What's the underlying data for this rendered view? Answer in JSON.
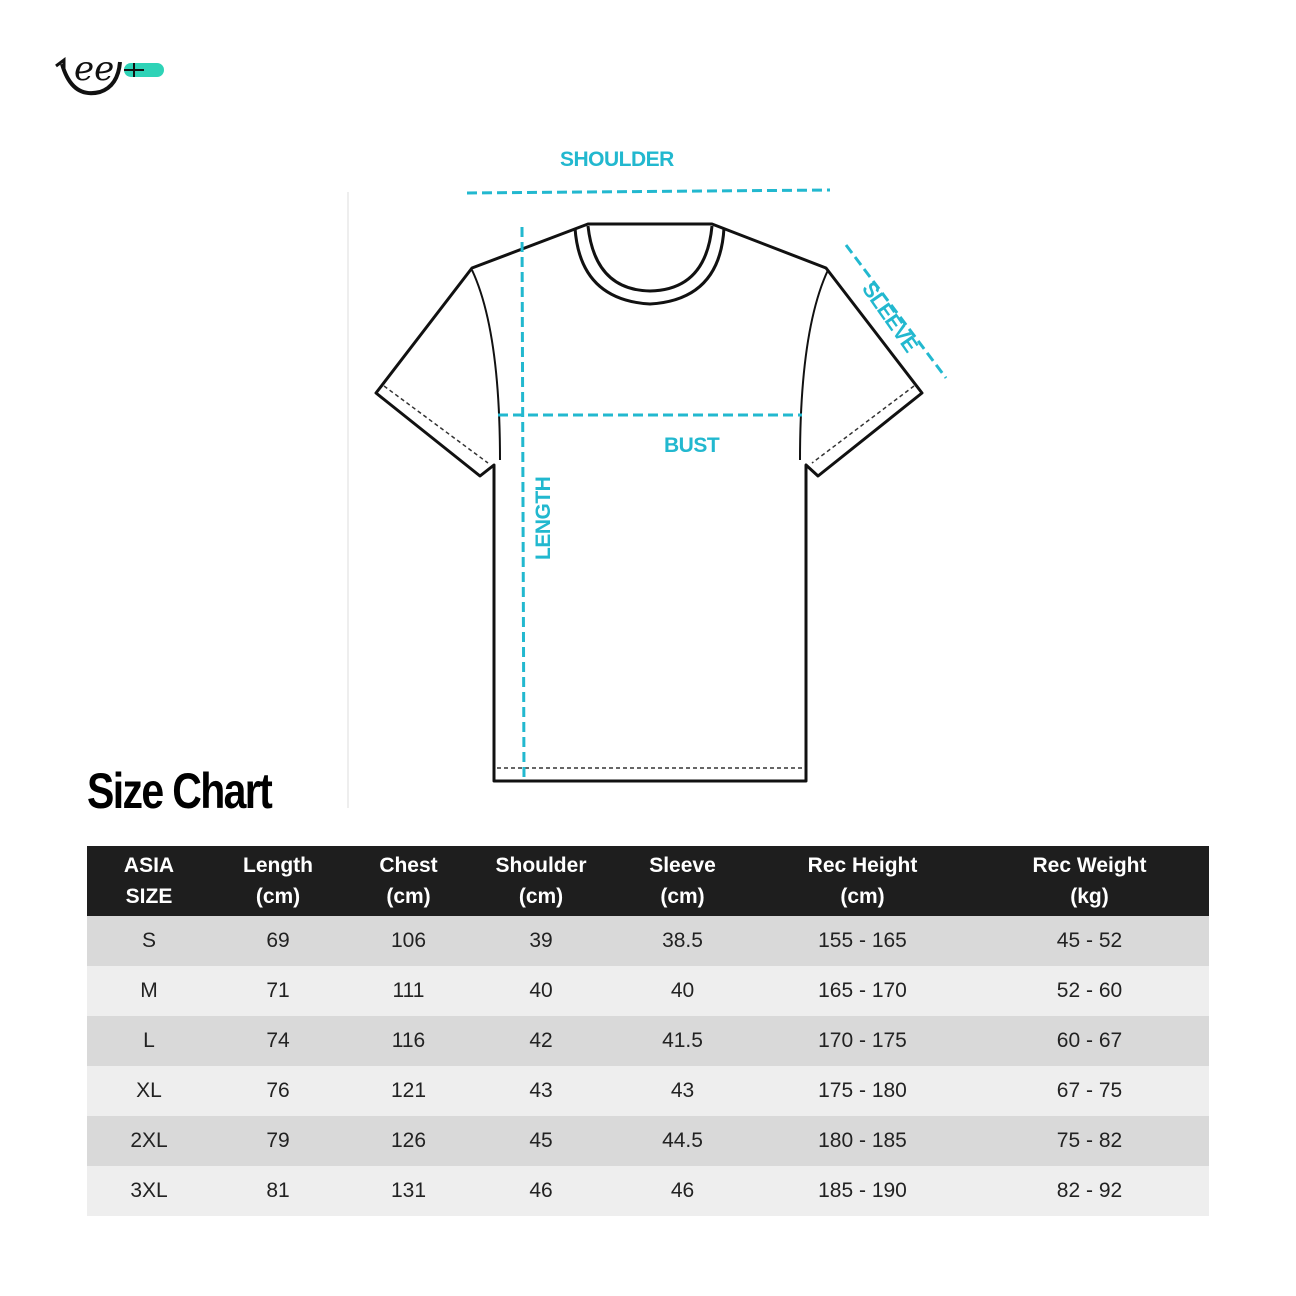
{
  "logo": {
    "text": "ee",
    "accent": "#2ed3b7"
  },
  "diagram": {
    "labels": {
      "shoulder": "SHOULDER",
      "sleeve": "SLEEVE",
      "bust": "BUST",
      "length": "LENGTH"
    },
    "accent": "#22b8cf"
  },
  "title": "Size Chart",
  "table": {
    "headers": [
      [
        "ASIA",
        "SIZE"
      ],
      [
        "Length",
        "(cm)"
      ],
      [
        "Chest",
        "(cm)"
      ],
      [
        "Shoulder",
        "(cm)"
      ],
      [
        "Sleeve",
        "(cm)"
      ],
      [
        "Rec Height",
        "(cm)"
      ],
      [
        "Rec Weight",
        "(kg)"
      ]
    ],
    "rows": [
      [
        "S",
        "69",
        "106",
        "39",
        "38.5",
        "155 - 165",
        "45 - 52"
      ],
      [
        "M",
        "71",
        "111",
        "40",
        "40",
        "165 - 170",
        "52 - 60"
      ],
      [
        "L",
        "74",
        "116",
        "42",
        "41.5",
        "170 - 175",
        "60 - 67"
      ],
      [
        "XL",
        "76",
        "121",
        "43",
        "43",
        "175 - 180",
        "67 - 75"
      ],
      [
        "2XL",
        "79",
        "126",
        "45",
        "44.5",
        "180 - 185",
        "75 - 82"
      ],
      [
        "3XL",
        "81",
        "131",
        "46",
        "46",
        "185 - 190",
        "82 - 92"
      ]
    ]
  }
}
